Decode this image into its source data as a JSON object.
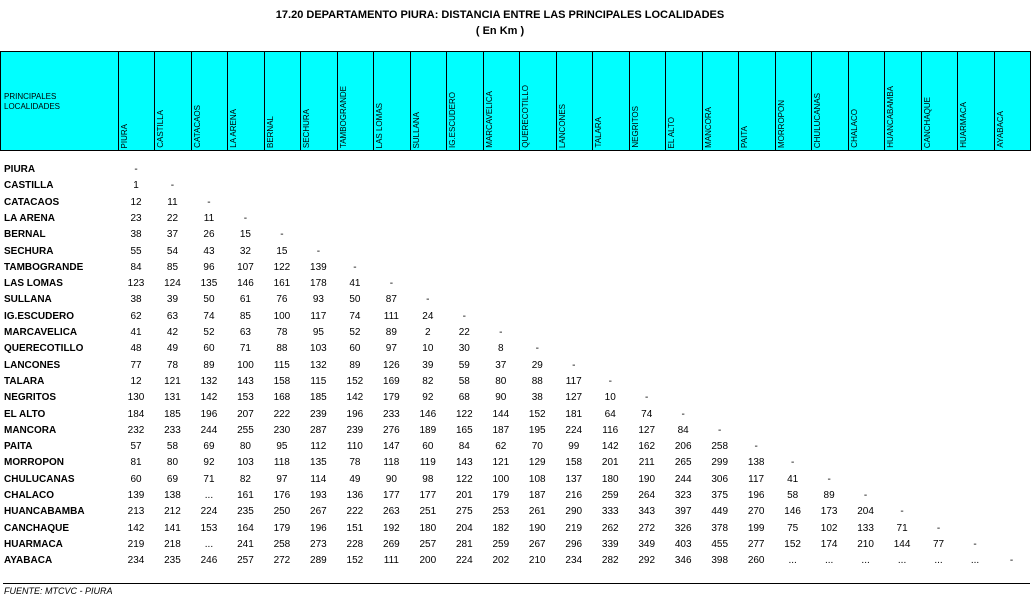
{
  "header": {
    "title": "17.20 DEPARTAMENTO PIURA: DISTANCIA ENTRE LAS PRINCIPALES LOCALIDADES",
    "subtitle": "( En Km )"
  },
  "table": {
    "corner": "PRINCIPALES LOCALIDADES",
    "columns": [
      "PIURA",
      "CASTILLA",
      "CATACAOS",
      "LA ARENA",
      "BERNAL",
      "SECHURA",
      "TAMBOGRANDE",
      "LAS LOMAS",
      "SULLANA",
      "IG.ESCUDERO",
      "MARCAVELICA",
      "QUERECOTILLO",
      "LANCONES",
      "TALARA",
      "NEGRITOS",
      "EL ALTO",
      "MANCORA",
      "PAITA",
      "MORROPON",
      "CHULUCANAS",
      "CHALACO",
      "HUANCABAMBA",
      "CANCHAQUE",
      "HUARMACA",
      "AYABACA"
    ],
    "rows": [
      {
        "name": "PIURA",
        "cells": [
          "-"
        ]
      },
      {
        "name": "CASTILLA",
        "cells": [
          "1",
          "-"
        ]
      },
      {
        "name": "CATACAOS",
        "cells": [
          "12",
          "11",
          "-"
        ]
      },
      {
        "name": "LA ARENA",
        "cells": [
          "23",
          "22",
          "11",
          "-"
        ]
      },
      {
        "name": "BERNAL",
        "cells": [
          "38",
          "37",
          "26",
          "15",
          "-"
        ]
      },
      {
        "name": "SECHURA",
        "cells": [
          "55",
          "54",
          "43",
          "32",
          "15",
          "-"
        ]
      },
      {
        "name": "TAMBOGRANDE",
        "cells": [
          "84",
          "85",
          "96",
          "107",
          "122",
          "139",
          "-"
        ]
      },
      {
        "name": "LAS LOMAS",
        "cells": [
          "123",
          "124",
          "135",
          "146",
          "161",
          "178",
          "41",
          "-"
        ]
      },
      {
        "name": "SULLANA",
        "cells": [
          "38",
          "39",
          "50",
          "61",
          "76",
          "93",
          "50",
          "87",
          "-"
        ]
      },
      {
        "name": "IG.ESCUDERO",
        "cells": [
          "62",
          "63",
          "74",
          "85",
          "100",
          "117",
          "74",
          "111",
          "24",
          "-"
        ]
      },
      {
        "name": "MARCAVELICA",
        "cells": [
          "41",
          "42",
          "52",
          "63",
          "78",
          "95",
          "52",
          "89",
          "2",
          "22",
          "-"
        ]
      },
      {
        "name": "QUERECOTILLO",
        "cells": [
          "48",
          "49",
          "60",
          "71",
          "88",
          "103",
          "60",
          "97",
          "10",
          "30",
          "8",
          "-"
        ]
      },
      {
        "name": "LANCONES",
        "cells": [
          "77",
          "78",
          "89",
          "100",
          "115",
          "132",
          "89",
          "126",
          "39",
          "59",
          "37",
          "29",
          "-"
        ]
      },
      {
        "name": "TALARA",
        "cells": [
          "12",
          "121",
          "132",
          "143",
          "158",
          "115",
          "152",
          "169",
          "82",
          "58",
          "80",
          "88",
          "117",
          "-"
        ]
      },
      {
        "name": "NEGRITOS",
        "cells": [
          "130",
          "131",
          "142",
          "153",
          "168",
          "185",
          "142",
          "179",
          "92",
          "68",
          "90",
          "38",
          "127",
          "10",
          "-"
        ]
      },
      {
        "name": "EL ALTO",
        "cells": [
          "184",
          "185",
          "196",
          "207",
          "222",
          "239",
          "196",
          "233",
          "146",
          "122",
          "144",
          "152",
          "181",
          "64",
          "74",
          "-"
        ]
      },
      {
        "name": "MANCORA",
        "cells": [
          "232",
          "233",
          "244",
          "255",
          "230",
          "287",
          "239",
          "276",
          "189",
          "165",
          "187",
          "195",
          "224",
          "116",
          "127",
          "84",
          "-"
        ]
      },
      {
        "name": "PAITA",
        "cells": [
          "57",
          "58",
          "69",
          "80",
          "95",
          "112",
          "110",
          "147",
          "60",
          "84",
          "62",
          "70",
          "99",
          "142",
          "162",
          "206",
          "258",
          "-"
        ]
      },
      {
        "name": "MORROPON",
        "cells": [
          "81",
          "80",
          "92",
          "103",
          "118",
          "135",
          "78",
          "118",
          "119",
          "143",
          "121",
          "129",
          "158",
          "201",
          "211",
          "265",
          "299",
          "138",
          "-"
        ]
      },
      {
        "name": "CHULUCANAS",
        "cells": [
          "60",
          "69",
          "71",
          "82",
          "97",
          "114",
          "49",
          "90",
          "98",
          "122",
          "100",
          "108",
          "137",
          "180",
          "190",
          "244",
          "306",
          "117",
          "41",
          "-"
        ]
      },
      {
        "name": "CHALACO",
        "cells": [
          "139",
          "138",
          "...",
          "161",
          "176",
          "193",
          "136",
          "177",
          "177",
          "201",
          "179",
          "187",
          "216",
          "259",
          "264",
          "323",
          "375",
          "196",
          "58",
          "89",
          "-"
        ]
      },
      {
        "name": "HUANCABAMBA",
        "cells": [
          "213",
          "212",
          "224",
          "235",
          "250",
          "267",
          "222",
          "263",
          "251",
          "275",
          "253",
          "261",
          "290",
          "333",
          "343",
          "397",
          "449",
          "270",
          "146",
          "173",
          "204",
          "-"
        ]
      },
      {
        "name": "CANCHAQUE",
        "cells": [
          "142",
          "141",
          "153",
          "164",
          "179",
          "196",
          "151",
          "192",
          "180",
          "204",
          "182",
          "190",
          "219",
          "262",
          "272",
          "326",
          "378",
          "199",
          "75",
          "102",
          "133",
          "71",
          "-"
        ]
      },
      {
        "name": "HUARMACA",
        "cells": [
          "219",
          "218",
          "...",
          "241",
          "258",
          "273",
          "228",
          "269",
          "257",
          "281",
          "259",
          "267",
          "296",
          "339",
          "349",
          "403",
          "455",
          "277",
          "152",
          "174",
          "210",
          "144",
          "77",
          "-"
        ]
      },
      {
        "name": "AYABACA",
        "cells": [
          "234",
          "235",
          "246",
          "257",
          "272",
          "289",
          "152",
          "111",
          "200",
          "224",
          "202",
          "210",
          "234",
          "282",
          "292",
          "346",
          "398",
          "260",
          "...",
          "...",
          "...",
          "...",
          "...",
          "...",
          "-"
        ]
      }
    ]
  },
  "footer": "FUENTE: MTCVC - PIURA"
}
